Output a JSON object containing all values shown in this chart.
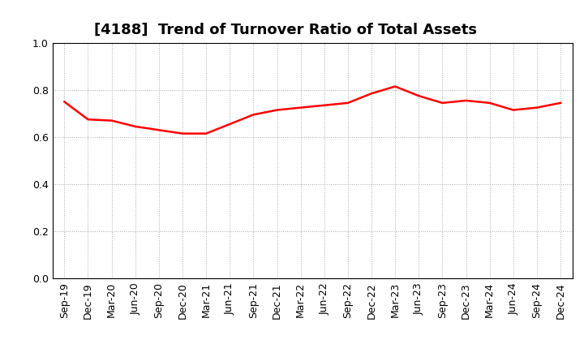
{
  "title": "[4188]  Trend of Turnover Ratio of Total Assets",
  "labels": [
    "Sep-19",
    "Dec-19",
    "Mar-20",
    "Jun-20",
    "Sep-20",
    "Dec-20",
    "Mar-21",
    "Jun-21",
    "Sep-21",
    "Dec-21",
    "Mar-22",
    "Jun-22",
    "Sep-22",
    "Dec-22",
    "Mar-23",
    "Jun-23",
    "Sep-23",
    "Dec-23",
    "Mar-24",
    "Jun-24",
    "Sep-24",
    "Dec-24"
  ],
  "values": [
    0.75,
    0.675,
    0.67,
    0.645,
    0.63,
    0.615,
    0.615,
    0.655,
    0.695,
    0.715,
    0.725,
    0.735,
    0.745,
    0.785,
    0.815,
    0.775,
    0.745,
    0.755,
    0.745,
    0.715,
    0.725,
    0.745
  ],
  "line_color": "#ff0000",
  "line_width": 1.8,
  "ylim": [
    0.0,
    1.0
  ],
  "yticks": [
    0.0,
    0.2,
    0.4,
    0.6,
    0.8,
    1.0
  ],
  "grid_color": "#aaaaaa",
  "grid_linestyle": ":",
  "background_color": "#ffffff",
  "title_fontsize": 13,
  "tick_fontsize": 9
}
